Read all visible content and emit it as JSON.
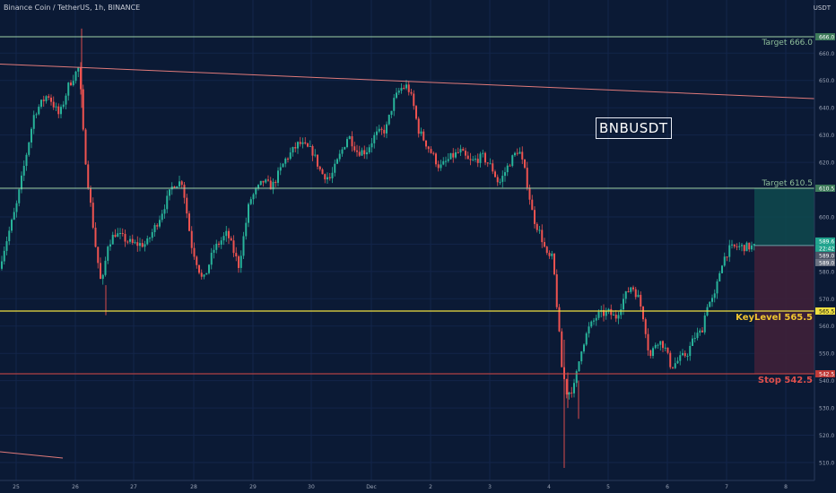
{
  "header": {
    "title": "Binance Coin / TetherUS, 1h, BINANCE",
    "currency": "USDT"
  },
  "symbol_box": "BNBUSDT",
  "levels": {
    "target_high": {
      "label": "Target 666.0",
      "price": 666.0,
      "tag": "666.0",
      "color": "#9fd3a8"
    },
    "target_mid": {
      "label": "Target 610.5",
      "price": 610.5,
      "tag": "610.5",
      "color": "#9fd3a8"
    },
    "key": {
      "label": "KeyLevel 565.5",
      "price": 565.5,
      "tag": "565.5",
      "color": "#f0e040"
    },
    "stop": {
      "label": "Stop 542.5",
      "price": 542.5,
      "tag": "542.5",
      "color": "#d94a46"
    }
  },
  "position": {
    "entry": 589.5,
    "target": 610.5,
    "stop": 542.5,
    "price_tags": [
      "589.6",
      "22:42",
      "589.0",
      "589.0"
    ]
  },
  "colors": {
    "up": "#28b39a",
    "down": "#ef5350",
    "background": "#0b1a35",
    "trendline": "#e07a7a",
    "profit_zone": "#0f4a4e",
    "loss_zone": "#3e2038"
  },
  "chart_data": {
    "type": "candlestick",
    "x_ticks": [
      "25",
      "26",
      "27",
      "28",
      "29",
      "30",
      "Dec",
      "2",
      "3",
      "4",
      "5",
      "6",
      "7",
      "8"
    ],
    "y_ticks": [
      510,
      520,
      530,
      540,
      550,
      560,
      570,
      580,
      590,
      600,
      610,
      620,
      630,
      640,
      650,
      660
    ],
    "ylim": [
      507,
      672
    ],
    "ohlc_waypoints": [
      [
        0,
        581
      ],
      [
        20,
        604
      ],
      [
        40,
        638
      ],
      [
        55,
        645
      ],
      [
        68,
        637
      ],
      [
        78,
        648
      ],
      [
        90,
        655
      ],
      [
        95,
        628
      ],
      [
        100,
        612
      ],
      [
        108,
        590
      ],
      [
        115,
        574
      ],
      [
        122,
        590
      ],
      [
        130,
        594
      ],
      [
        150,
        590
      ],
      [
        165,
        590
      ],
      [
        180,
        600
      ],
      [
        195,
        612
      ],
      [
        205,
        613
      ],
      [
        215,
        590
      ],
      [
        228,
        576
      ],
      [
        240,
        588
      ],
      [
        255,
        594
      ],
      [
        268,
        582
      ],
      [
        280,
        606
      ],
      [
        295,
        613
      ],
      [
        305,
        611
      ],
      [
        320,
        621
      ],
      [
        335,
        627
      ],
      [
        350,
        624
      ],
      [
        360,
        616
      ],
      [
        370,
        614
      ],
      [
        380,
        622
      ],
      [
        390,
        630
      ],
      [
        400,
        624
      ],
      [
        410,
        624
      ],
      [
        420,
        630
      ],
      [
        432,
        632
      ],
      [
        440,
        642
      ],
      [
        448,
        647
      ],
      [
        456,
        648
      ],
      [
        462,
        642
      ],
      [
        468,
        632
      ],
      [
        480,
        625
      ],
      [
        492,
        618
      ],
      [
        505,
        622
      ],
      [
        515,
        624
      ],
      [
        525,
        620
      ],
      [
        540,
        622
      ],
      [
        550,
        618
      ],
      [
        558,
        612
      ],
      [
        570,
        620
      ],
      [
        580,
        625
      ],
      [
        588,
        615
      ],
      [
        596,
        600
      ],
      [
        605,
        593
      ],
      [
        612,
        585
      ],
      [
        618,
        585
      ],
      [
        622,
        570
      ],
      [
        628,
        545
      ],
      [
        634,
        535
      ],
      [
        642,
        538
      ],
      [
        650,
        552
      ],
      [
        658,
        559
      ],
      [
        668,
        564
      ],
      [
        680,
        565
      ],
      [
        688,
        563
      ],
      [
        697,
        570
      ],
      [
        706,
        575
      ],
      [
        714,
        570
      ],
      [
        720,
        562
      ],
      [
        726,
        548
      ],
      [
        734,
        555
      ],
      [
        742,
        553
      ],
      [
        750,
        545
      ],
      [
        760,
        548
      ],
      [
        768,
        550
      ],
      [
        776,
        556
      ],
      [
        784,
        558
      ],
      [
        790,
        568
      ],
      [
        798,
        570
      ],
      [
        806,
        583
      ],
      [
        814,
        588
      ],
      [
        822,
        589
      ],
      [
        830,
        589
      ],
      [
        838,
        589
      ]
    ],
    "trendline": [
      [
        0,
        656
      ],
      [
        932,
        643
      ]
    ]
  }
}
